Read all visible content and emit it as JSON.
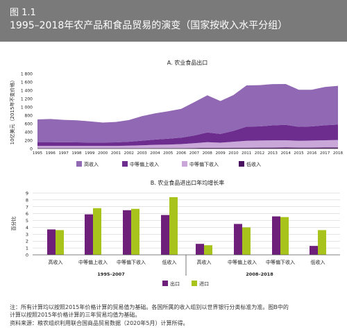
{
  "figure": {
    "number": "图 1.1",
    "title": "1995–2018年农产品和食品贸易的演变（国家按收入水平分组）"
  },
  "notes": {
    "line1": "注：所有计算均以按照2015年价格计算的贸易值为基础。各国所属的收入组别以世界银行分类标准为准。图B中的",
    "line2": "计算以按照2015年价格计算的三年贸易均值为基础。",
    "source": "资料来源：粮农组织利用联合国商品贸易数据（2020年5月）计算所得。"
  },
  "colors": {
    "high": "#9068b4",
    "upper_mid": "#6c2d8f",
    "lower_mid": "#c9a7d8",
    "low": "#4a1060",
    "export": "#6e1f7a",
    "import": "#a8c41c"
  },
  "chart_data": [
    {
      "type": "area",
      "stacked": true,
      "title": "A. 农业食品出口",
      "ylabel": "10亿美元（2015年不变价格）",
      "ylim": [
        0,
        1800
      ],
      "yticks": [
        "0",
        "200",
        "400",
        "600",
        "800",
        "1 000",
        "1 200",
        "1 400",
        "1 600",
        "1 800"
      ],
      "x": [
        "1995",
        "1996",
        "1997",
        "1998",
        "1999",
        "2000",
        "2001",
        "2002",
        "2003",
        "2004",
        "2005",
        "2006",
        "2007",
        "2008",
        "2009",
        "2010",
        "2011",
        "2012",
        "2013",
        "2014",
        "2015",
        "2016",
        "2017",
        "2018"
      ],
      "series": [
        {
          "name": "低收入",
          "key": "low",
          "values": [
            10,
            10,
            10,
            10,
            10,
            10,
            10,
            10,
            10,
            12,
            12,
            13,
            15,
            18,
            17,
            20,
            22,
            23,
            24,
            25,
            23,
            24,
            25,
            26
          ]
        },
        {
          "name": "中等偏下收入",
          "key": "lower_mid",
          "values": [
            55,
            55,
            55,
            55,
            55,
            55,
            55,
            60,
            70,
            80,
            85,
            95,
            115,
            135,
            125,
            145,
            165,
            170,
            175,
            175,
            165,
            170,
            175,
            180
          ]
        },
        {
          "name": "中等偏上收入",
          "key": "upper_mid",
          "values": [
            85,
            85,
            90,
            85,
            80,
            80,
            85,
            95,
            110,
            125,
            140,
            155,
            185,
            235,
            210,
            260,
            340,
            340,
            360,
            370,
            335,
            340,
            360,
            370
          ]
        },
        {
          "name": "高收入",
          "key": "high",
          "values": [
            550,
            560,
            535,
            530,
            510,
            480,
            490,
            520,
            590,
            630,
            660,
            690,
            800,
            890,
            790,
            860,
            990,
            990,
            990,
            980,
            890,
            880,
            920,
            930
          ]
        }
      ]
    },
    {
      "type": "bar",
      "title": "B. 农业食品进出口年均增长率",
      "ylabel": "百分比",
      "ylim": [
        0,
        9
      ],
      "yticks": [
        "0",
        "1",
        "2",
        "3",
        "4",
        "5",
        "6",
        "7",
        "8",
        "9"
      ],
      "groups": [
        {
          "label": "1995–2007",
          "categories": [
            "高收入",
            "中等偏上收入",
            "中等偏下收入",
            "低收入"
          ]
        },
        {
          "label": "2008–2018",
          "categories": [
            "高收入",
            "中等偏上收入",
            "中等偏下收入",
            "低收入"
          ]
        }
      ],
      "series": [
        {
          "name": "出口",
          "key": "export",
          "values": [
            3.7,
            5.9,
            6.5,
            5.8,
            1.6,
            4.5,
            5.6,
            1.3
          ]
        },
        {
          "name": "进口",
          "key": "import",
          "values": [
            3.6,
            6.8,
            6.7,
            8.4,
            1.4,
            4.0,
            5.5,
            3.6
          ]
        }
      ]
    }
  ]
}
